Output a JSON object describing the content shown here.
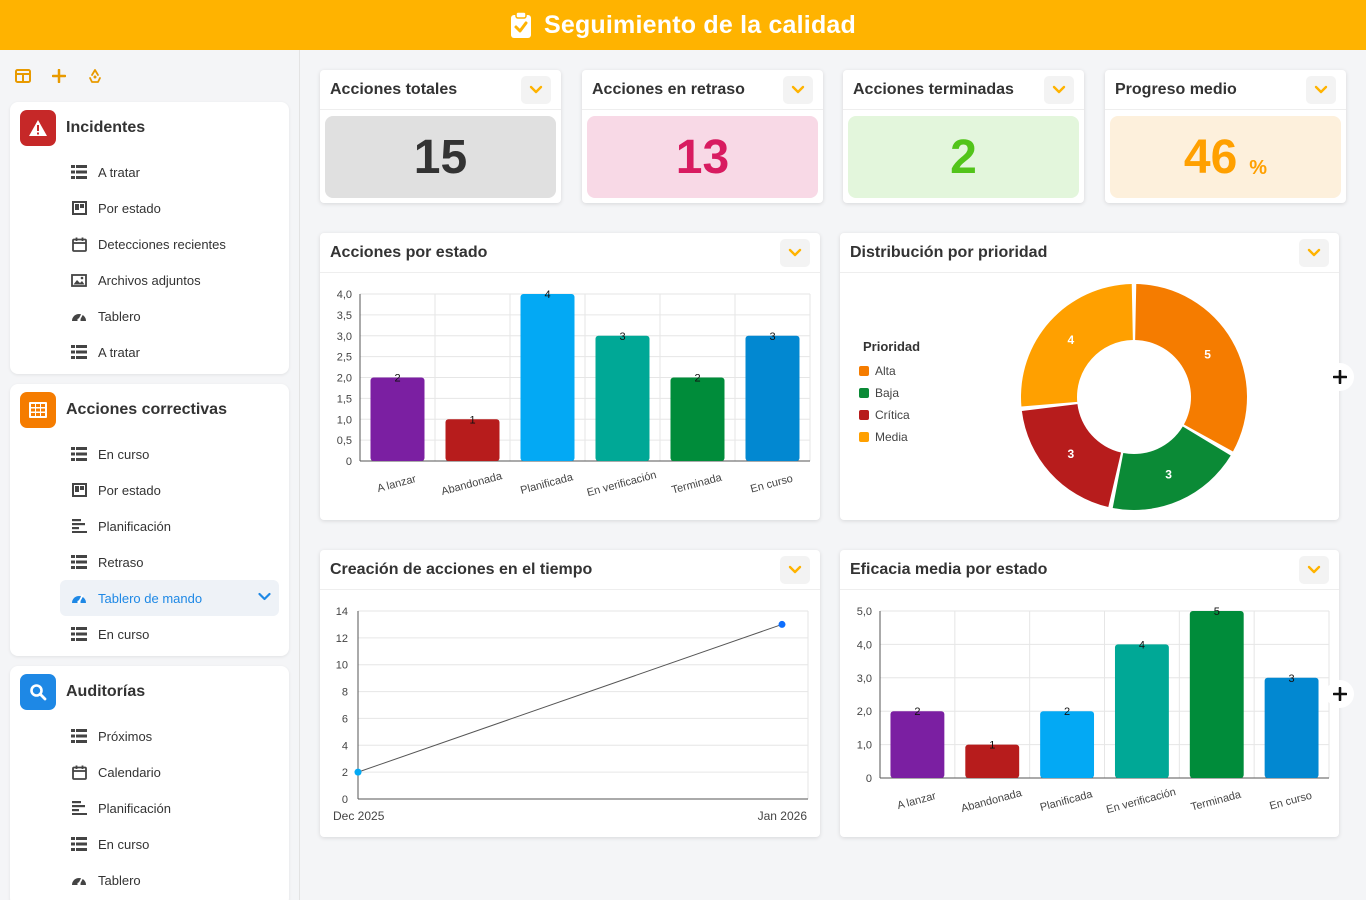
{
  "header": {
    "title": "Seguimiento de la calidad"
  },
  "toolbar": {
    "icons": [
      "layout-icon",
      "add-icon",
      "recycle-icon"
    ]
  },
  "sidebar": {
    "groups": [
      {
        "title": "Incidentes",
        "color": "#c62828",
        "items": [
          {
            "label": "A tratar",
            "icon": "table-icon"
          },
          {
            "label": "Por estado",
            "icon": "kanban-icon"
          },
          {
            "label": "Detecciones recientes",
            "icon": "calendar-icon"
          },
          {
            "label": "Archivos adjuntos",
            "icon": "image-icon"
          },
          {
            "label": "Tablero",
            "icon": "gauge-icon"
          },
          {
            "label": "A tratar",
            "icon": "table-icon"
          }
        ]
      },
      {
        "title": "Acciones correctivas",
        "color": "#f57c00",
        "items": [
          {
            "label": "En curso",
            "icon": "table-icon"
          },
          {
            "label": "Por estado",
            "icon": "kanban-icon"
          },
          {
            "label": "Planificación",
            "icon": "gantt-icon"
          },
          {
            "label": "Retraso",
            "icon": "table-icon"
          },
          {
            "label": "Tablero de mando",
            "icon": "gauge-icon",
            "active": true
          },
          {
            "label": "En curso",
            "icon": "table-icon"
          }
        ]
      },
      {
        "title": "Auditorías",
        "color": "#1e88e5",
        "items": [
          {
            "label": "Próximos",
            "icon": "table-icon"
          },
          {
            "label": "Calendario",
            "icon": "calendar-icon"
          },
          {
            "label": "Planificación",
            "icon": "gantt-icon"
          },
          {
            "label": "En curso",
            "icon": "table-icon"
          },
          {
            "label": "Tablero",
            "icon": "gauge-icon"
          }
        ]
      }
    ]
  },
  "kpis": [
    {
      "title": "Acciones totales",
      "value": "15",
      "unit": "",
      "bg": "#e0e0e0",
      "color": "#333333"
    },
    {
      "title": "Acciones en retraso",
      "value": "13",
      "unit": "",
      "bg": "#f8d9e6",
      "color": "#d81b60"
    },
    {
      "title": "Acciones terminadas",
      "value": "2",
      "unit": "",
      "bg": "#e3f6dc",
      "color": "#52c41a"
    },
    {
      "title": "Progreso medio",
      "value": "46",
      "unit": "%",
      "bg": "#fdf0dc",
      "color": "#ffa000"
    }
  ],
  "chart_data": [
    {
      "type": "bar",
      "title": "Acciones por estado",
      "categories": [
        "A lanzar",
        "Abandonada",
        "Planificada",
        "En verificación",
        "Terminada",
        "En curso"
      ],
      "values": [
        2,
        1,
        4,
        3,
        2,
        3
      ],
      "colors": [
        "#7b1fa2",
        "#b71c1c",
        "#03a9f4",
        "#00a896",
        "#008c3a",
        "#0288d1"
      ],
      "ylim": [
        0,
        4
      ],
      "yticks": [
        "0",
        "0,5",
        "1,0",
        "1,5",
        "2,0",
        "2,5",
        "3,0",
        "3,5",
        "4,0"
      ]
    },
    {
      "type": "pie",
      "title": "Distribución por prioridad",
      "legend_title": "Prioridad",
      "categories": [
        "Alta",
        "Baja",
        "Crítica",
        "Media"
      ],
      "values": [
        5,
        3,
        3,
        4
      ],
      "colors": [
        "#f57c00",
        "#0b8a36",
        "#b71c1c",
        "#ffa000"
      ],
      "legend": "left"
    },
    {
      "type": "line",
      "title": "Creación de acciones en el tiempo",
      "x": [
        "Dec 2025",
        "Jan 2026"
      ],
      "values": [
        2,
        13
      ],
      "ylim": [
        0,
        14
      ],
      "yticks": [
        "0",
        "2",
        "4",
        "6",
        "8",
        "10",
        "12",
        "14"
      ]
    },
    {
      "type": "bar",
      "title": "Eficacia media por estado",
      "categories": [
        "A lanzar",
        "Abandonada",
        "Planificada",
        "En verificación",
        "Terminada",
        "En curso"
      ],
      "values": [
        2,
        1,
        2,
        4,
        5,
        3
      ],
      "labels": [
        "2",
        "1",
        "2",
        "4",
        "5",
        "3"
      ],
      "colors": [
        "#7b1fa2",
        "#b71c1c",
        "#03a9f4",
        "#00a896",
        "#008c3a",
        "#0288d1"
      ],
      "ylim": [
        0,
        5
      ],
      "yticks": [
        "0",
        "1,0",
        "2,0",
        "3,0",
        "4,0",
        "5,0"
      ]
    }
  ]
}
